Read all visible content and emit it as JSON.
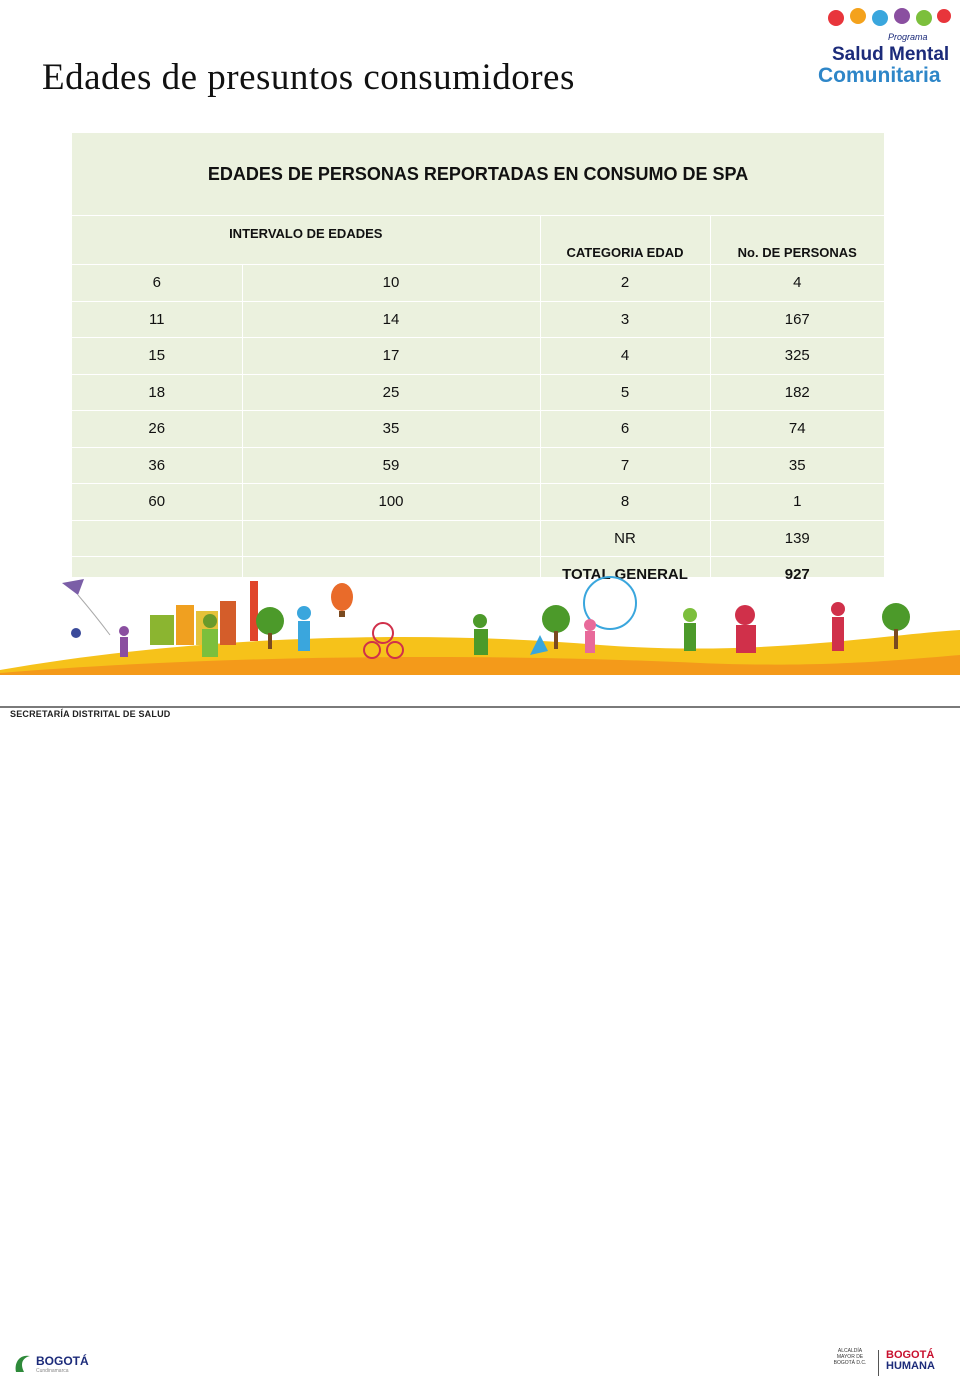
{
  "slide": {
    "title": "Edades de presuntos consumidores"
  },
  "logo": {
    "program_label": "Programa",
    "line1": "Salud Mental",
    "line2": "Comunitaria",
    "colors": [
      "#e8353b",
      "#f4a21c",
      "#3aa6dd",
      "#8a4fa0",
      "#7cbf3c"
    ]
  },
  "table": {
    "caption": "EDADES DE PERSONAS REPORTADAS EN CONSUMO DE SPA",
    "headers": {
      "interval": "INTERVALO DE EDADES",
      "category": "CATEGORIA EDAD",
      "persons": "No. DE PERSONAS"
    },
    "rows": [
      {
        "from": "6",
        "to": "10",
        "category": "2",
        "persons": "4"
      },
      {
        "from": "11",
        "to": "14",
        "category": "3",
        "persons": "167"
      },
      {
        "from": "15",
        "to": "17",
        "category": "4",
        "persons": "325"
      },
      {
        "from": "18",
        "to": "25",
        "category": "5",
        "persons": "182"
      },
      {
        "from": "26",
        "to": "35",
        "category": "6",
        "persons": "74"
      },
      {
        "from": "36",
        "to": "59",
        "category": "7",
        "persons": "35"
      },
      {
        "from": "60",
        "to": "100",
        "category": "8",
        "persons": "1"
      },
      {
        "from": "",
        "to": "",
        "category": "NR",
        "persons": "139"
      }
    ],
    "total": {
      "label": "TOTAL GENERAL",
      "value": "927"
    },
    "background": "#ebf1de"
  },
  "footer": {
    "secretaria": "SECRETARÍA DISTRITAL DE SALUD",
    "bogota_left": "BOGOTÁ",
    "bogota_left_sub": "Cundinamarca",
    "alcaldia": "ALCALDÍA MAYOR DE BOGOTÁ D.C.",
    "bogota_humana_1": "BOGOTÁ",
    "bogota_humana_2": "HUMANA"
  }
}
